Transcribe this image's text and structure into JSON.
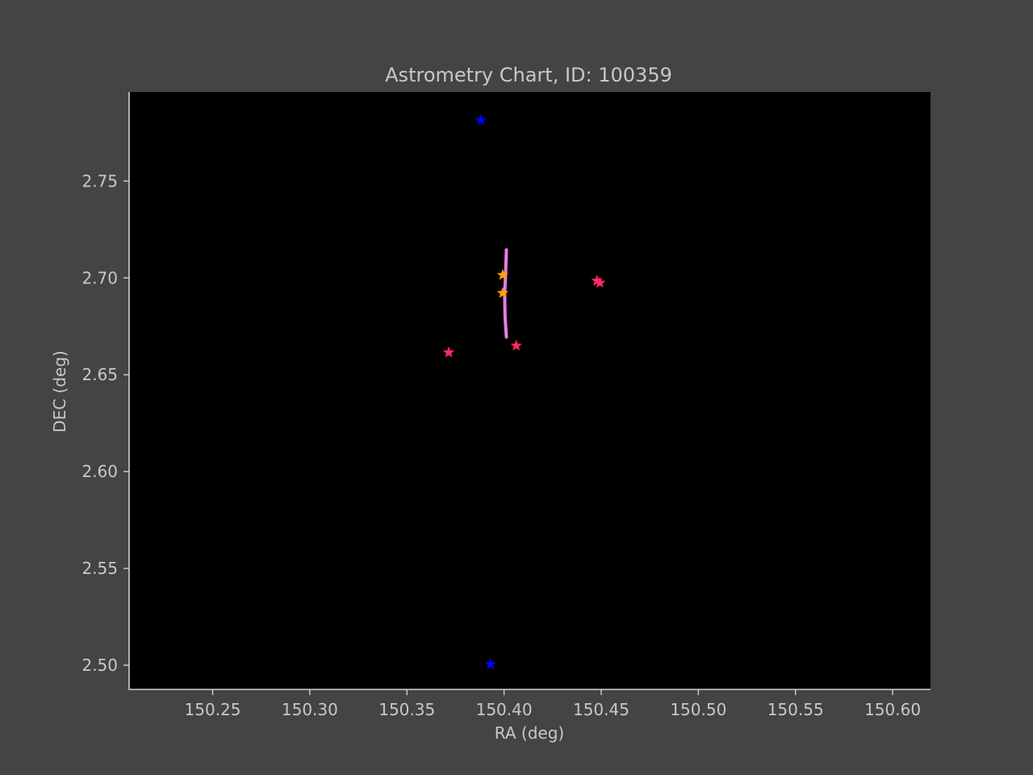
{
  "chart_data": {
    "type": "scatter",
    "title": "Astrometry Chart, ID: 100359",
    "xlabel": "RA (deg)",
    "ylabel": "DEC (deg)",
    "xlim": [
      150.207,
      150.6195
    ],
    "ylim": [
      2.4875,
      2.796
    ],
    "xticks": [
      150.25,
      150.3,
      150.35,
      150.4,
      150.45,
      150.5,
      150.55,
      150.6
    ],
    "yticks": [
      2.5,
      2.55,
      2.6,
      2.65,
      2.7,
      2.75
    ],
    "xtick_labels": [
      "150.25",
      "150.30",
      "150.35",
      "150.40",
      "150.45",
      "150.50",
      "150.55",
      "150.60"
    ],
    "ytick_labels": [
      "2.50",
      "2.55",
      "2.60",
      "2.65",
      "2.70",
      "2.75"
    ],
    "grid": false,
    "background": "#000000",
    "series": [
      {
        "marker": "star",
        "color": "#0000ff",
        "points": [
          [
            150.388,
            2.7815
          ],
          [
            150.393,
            2.5005
          ]
        ]
      },
      {
        "marker": "star",
        "color": "#ff2a5f",
        "points": [
          [
            150.3715,
            2.6615
          ],
          [
            150.4063,
            2.665
          ],
          [
            150.4478,
            2.6985
          ],
          [
            150.4493,
            2.6975
          ]
        ]
      },
      {
        "marker": "star",
        "color": "#ffa000",
        "points": [
          [
            150.3993,
            2.7015
          ],
          [
            150.3993,
            2.6922
          ]
        ]
      },
      {
        "marker": "line",
        "color": "#e87de8",
        "points": [
          [
            150.4012,
            2.7145
          ],
          [
            150.4007,
            2.7
          ],
          [
            150.4003,
            2.692
          ],
          [
            150.4005,
            2.68
          ],
          [
            150.4012,
            2.6695
          ]
        ]
      }
    ]
  }
}
